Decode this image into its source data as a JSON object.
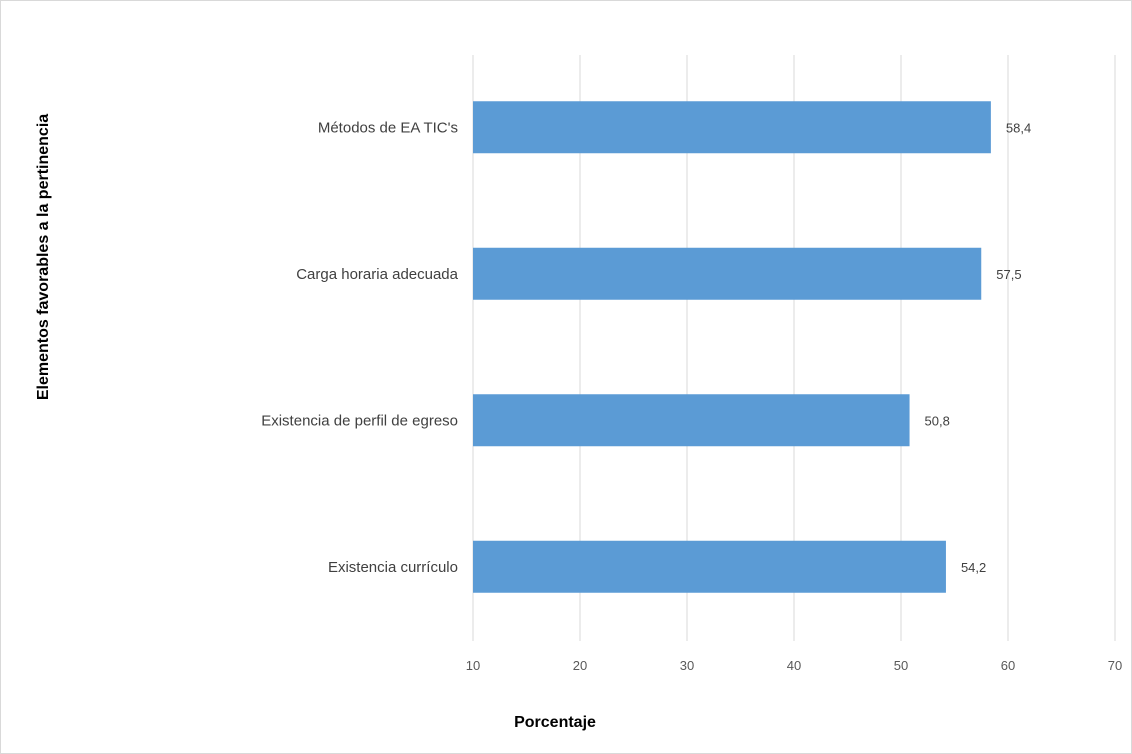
{
  "chart_data": {
    "type": "bar",
    "orientation": "horizontal",
    "categories": [
      "Métodos de EA TIC's",
      "Carga horaria adecuada",
      "Existencia de perfil de egreso",
      "Existencia currículo"
    ],
    "values": [
      58.4,
      57.5,
      50.8,
      54.2
    ],
    "value_labels": [
      "58,4",
      "57,5",
      "50,8",
      "54,2"
    ],
    "xlim": [
      10,
      70
    ],
    "x_ticks": [
      10,
      20,
      30,
      40,
      50,
      60,
      70
    ],
    "xlabel": "Porcentaje",
    "ylabel": "Elementos favorables a la pertinencia",
    "grid": "vertical",
    "legend": "none",
    "bar_color": "#5b9bd5",
    "grid_color": "#d9d9d9"
  }
}
